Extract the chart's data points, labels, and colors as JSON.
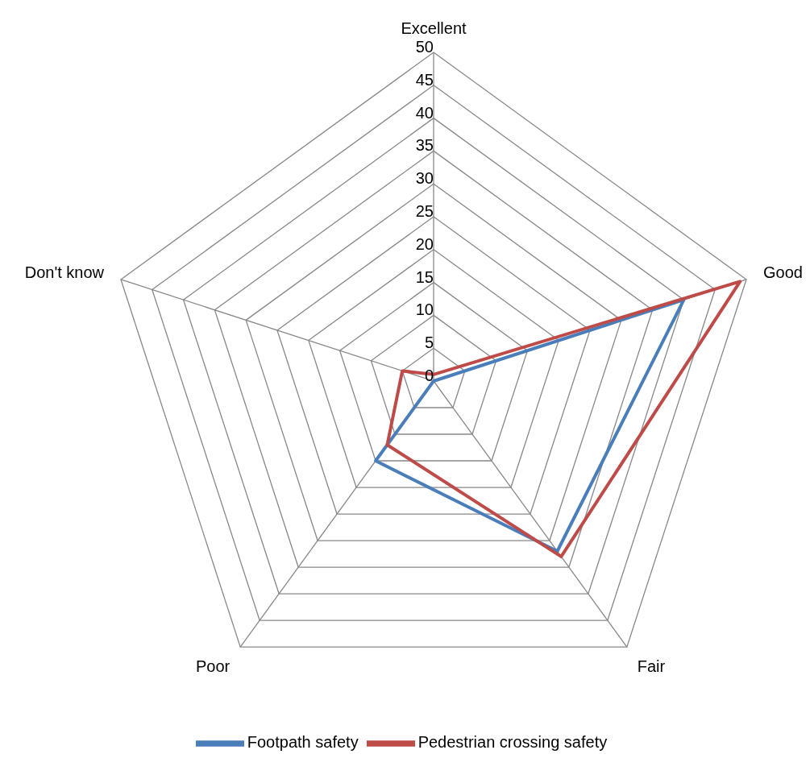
{
  "chart_data": {
    "type": "radar",
    "categories": [
      "Excellent",
      "Good",
      "Fair",
      "Poor",
      "Don't know"
    ],
    "series": [
      {
        "name": "Footpath safety",
        "color": "#4a7ebb",
        "values": [
          0,
          40,
          32,
          15,
          0
        ]
      },
      {
        "name": "Pedestrian crossing safety",
        "color": "#be4b48",
        "values": [
          1,
          49,
          33,
          12,
          5
        ]
      }
    ],
    "ylim": [
      0,
      50
    ],
    "yticks": [
      0,
      5,
      10,
      15,
      20,
      25,
      30,
      35,
      40,
      45,
      50
    ],
    "legend": "bottom",
    "marker": "none"
  }
}
